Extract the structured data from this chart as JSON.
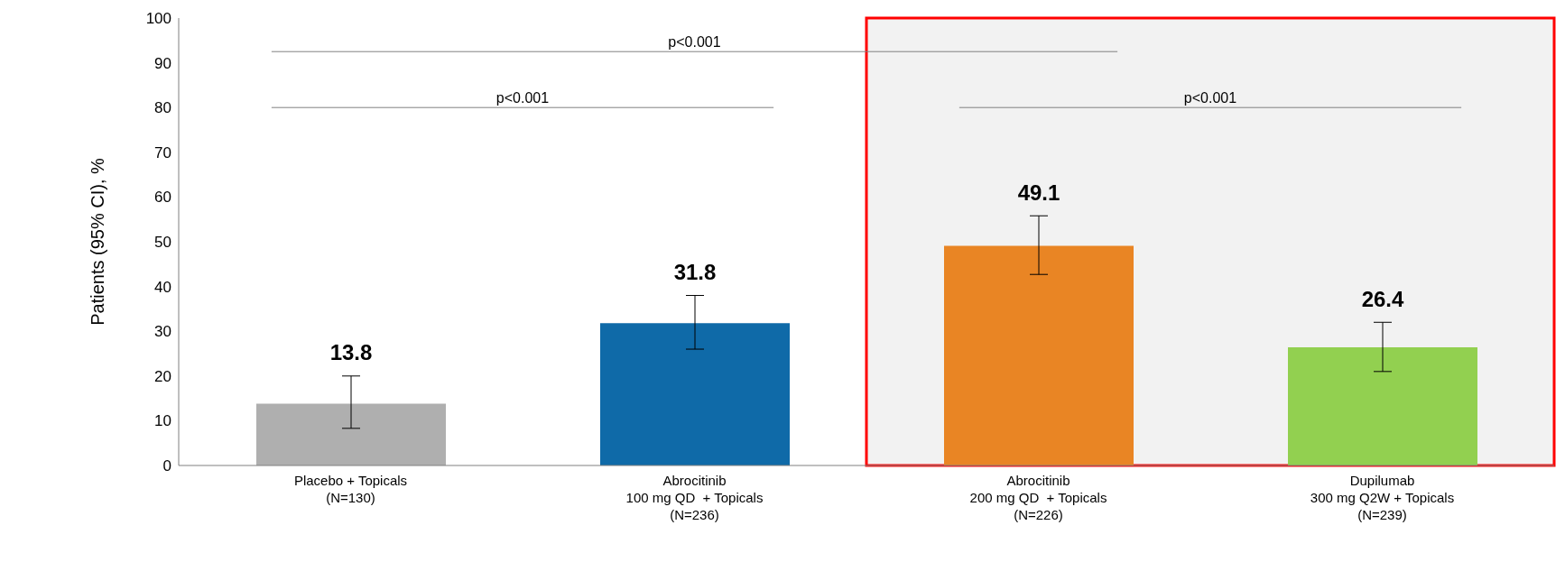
{
  "chart_data": {
    "type": "bar",
    "ylabel": "Patients (95% CI), %",
    "categories": [
      "Placebo + Topicals\n(N=130)",
      "Abrocitinib\n100 mg QD  + Topicals\n(N=236)",
      "Abrocitinib\n200 mg QD  + Topicals\n(N=226)",
      "Dupilumab\n300 mg Q2W + Topicals\n(N=239)"
    ],
    "values": [
      13.8,
      31.8,
      49.1,
      26.4
    ],
    "colors": [
      "#afafaf",
      "#0f6aa8",
      "#e98524",
      "#92d050"
    ],
    "errors": [
      [
        8.3,
        20
      ],
      [
        26,
        38
      ],
      [
        42.7,
        55.8
      ],
      [
        21,
        32
      ]
    ],
    "data_labels": true,
    "ylim": [
      0,
      100
    ],
    "yticks": [
      0,
      10,
      20,
      30,
      40,
      50,
      60,
      70,
      80,
      90,
      100
    ],
    "bands": [
      {
        "axis": "x",
        "from": "Abrocitinib\n200 mg QD  + Topicals\n(N=226)",
        "to": "Dupilumab\n300 mg Q2W + Topicals\n(N=239)",
        "color": "#f2f2f2"
      }
    ],
    "annotations": [
      "p<0.001",
      "p<0.001",
      "p<0.001"
    ]
  }
}
